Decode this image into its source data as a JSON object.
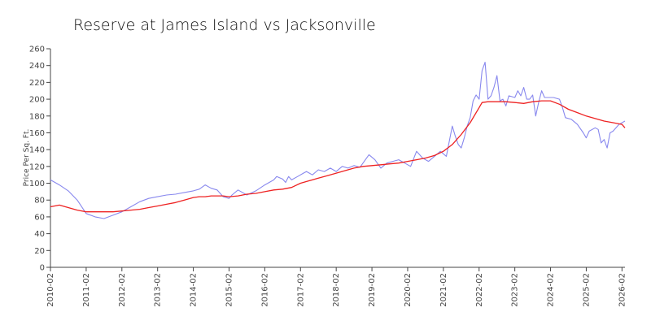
{
  "chart_data": {
    "type": "line",
    "title": "Reserve at James Island vs Jacksonville",
    "xlabel": "",
    "ylabel": "Price Per Sq. Ft.",
    "ylim": [
      0,
      260
    ],
    "yticks": [
      0,
      20,
      40,
      60,
      80,
      100,
      120,
      140,
      160,
      180,
      200,
      220,
      240,
      260
    ],
    "xlim": [
      "2010-02",
      "2026-03"
    ],
    "xticks": [
      "2010-02",
      "2011-02",
      "2012-02",
      "2013-02",
      "2014-02",
      "2015-02",
      "2016-02",
      "2017-02",
      "2018-02",
      "2019-02",
      "2020-02",
      "2021-02",
      "2022-02",
      "2023-02",
      "2024-02",
      "2025-02",
      "2026-02"
    ],
    "grid": false,
    "legend": "none",
    "series": [
      {
        "color": "#8888ee",
        "x": [
          "2010-02",
          "2010-05",
          "2010-08",
          "2010-11",
          "2011-02",
          "2011-05",
          "2011-08",
          "2011-11",
          "2012-02",
          "2012-05",
          "2012-08",
          "2012-11",
          "2013-02",
          "2013-05",
          "2013-08",
          "2013-11",
          "2014-02",
          "2014-04",
          "2014-06",
          "2014-08",
          "2014-10",
          "2014-12",
          "2015-02",
          "2015-03",
          "2015-05",
          "2015-08",
          "2015-11",
          "2016-02",
          "2016-05",
          "2016-06",
          "2016-08",
          "2016-09",
          "2016-10",
          "2016-11",
          "2017-01",
          "2017-03",
          "2017-04",
          "2017-06",
          "2017-08",
          "2017-10",
          "2017-12",
          "2018-02",
          "2018-04",
          "2018-06",
          "2018-08",
          "2018-10",
          "2018-11",
          "2019-01",
          "2019-03",
          "2019-05",
          "2019-07",
          "2019-09",
          "2019-11",
          "2020-01",
          "2020-03",
          "2020-05",
          "2020-07",
          "2020-09",
          "2020-11",
          "2021-01",
          "2021-03",
          "2021-05",
          "2021-06",
          "2021-07",
          "2021-08",
          "2021-09",
          "2021-10",
          "2021-11",
          "2021-12",
          "2022-01",
          "2022-02",
          "2022-03",
          "2022-04",
          "2022-05",
          "2022-06",
          "2022-07",
          "2022-08",
          "2022-09",
          "2022-10",
          "2022-11",
          "2022-12",
          "2023-02",
          "2023-03",
          "2023-04",
          "2023-05",
          "2023-06",
          "2023-07",
          "2023-08",
          "2023-09",
          "2023-10",
          "2023-11",
          "2023-12",
          "2024-01",
          "2024-03",
          "2024-05",
          "2024-06",
          "2024-07",
          "2024-09",
          "2024-11",
          "2025-01",
          "2025-02",
          "2025-03",
          "2025-05",
          "2025-06",
          "2025-07",
          "2025-08",
          "2025-09",
          "2025-10",
          "2025-11",
          "2025-12",
          "2026-01",
          "2026-03"
        ],
        "values": [
          104,
          98,
          91,
          80,
          64,
          60,
          58,
          62,
          66,
          72,
          78,
          82,
          84,
          86,
          87,
          89,
          91,
          93,
          98,
          94,
          92,
          84,
          82,
          86,
          92,
          86,
          91,
          98,
          104,
          108,
          105,
          101,
          108,
          104,
          108,
          112,
          114,
          110,
          116,
          114,
          118,
          114,
          120,
          118,
          121,
          119,
          124,
          134,
          128,
          118,
          124,
          126,
          128,
          124,
          120,
          138,
          130,
          126,
          132,
          138,
          132,
          168,
          156,
          146,
          142,
          154,
          168,
          178,
          198,
          205,
          200,
          234,
          244,
          200,
          204,
          214,
          228,
          198,
          200,
          192,
          204,
          202,
          210,
          204,
          214,
          200,
          200,
          205,
          180,
          196,
          210,
          202,
          202,
          202,
          200,
          190,
          178,
          176,
          170,
          160,
          154,
          162,
          166,
          164,
          148,
          152,
          142,
          160,
          162,
          166,
          170,
          174
        ]
      },
      {
        "color": "#ee2222",
        "x": [
          "2010-02",
          "2010-05",
          "2010-08",
          "2010-11",
          "2011-02",
          "2011-05",
          "2011-08",
          "2011-11",
          "2012-02",
          "2012-05",
          "2012-08",
          "2012-11",
          "2013-02",
          "2013-05",
          "2013-08",
          "2013-11",
          "2014-02",
          "2014-04",
          "2014-06",
          "2014-08",
          "2014-10",
          "2014-12",
          "2015-02",
          "2015-05",
          "2015-08",
          "2015-11",
          "2016-02",
          "2016-05",
          "2016-08",
          "2016-11",
          "2017-02",
          "2017-05",
          "2017-08",
          "2017-11",
          "2018-02",
          "2018-05",
          "2018-08",
          "2018-11",
          "2019-02",
          "2019-05",
          "2019-08",
          "2019-11",
          "2020-02",
          "2020-05",
          "2020-08",
          "2020-11",
          "2021-02",
          "2021-05",
          "2021-08",
          "2021-11",
          "2022-02",
          "2022-03",
          "2022-05",
          "2022-08",
          "2022-11",
          "2023-02",
          "2023-05",
          "2023-08",
          "2023-11",
          "2024-02",
          "2024-05",
          "2024-08",
          "2024-11",
          "2025-02",
          "2025-05",
          "2025-08",
          "2025-11",
          "2026-02",
          "2026-03"
        ],
        "values": [
          72,
          74,
          71,
          68,
          66,
          66,
          66,
          66,
          67,
          68,
          69,
          71,
          73,
          75,
          77,
          80,
          83,
          84,
          84,
          85,
          85,
          85,
          84,
          85,
          87,
          88,
          90,
          92,
          93,
          95,
          100,
          103,
          106,
          109,
          112,
          115,
          118,
          120,
          121,
          122,
          123,
          124,
          126,
          128,
          130,
          133,
          138,
          146,
          158,
          172,
          190,
          196,
          197,
          197,
          197,
          196,
          195,
          197,
          198,
          198,
          194,
          188,
          184,
          180,
          177,
          174,
          172,
          170,
          166
        ]
      }
    ]
  }
}
